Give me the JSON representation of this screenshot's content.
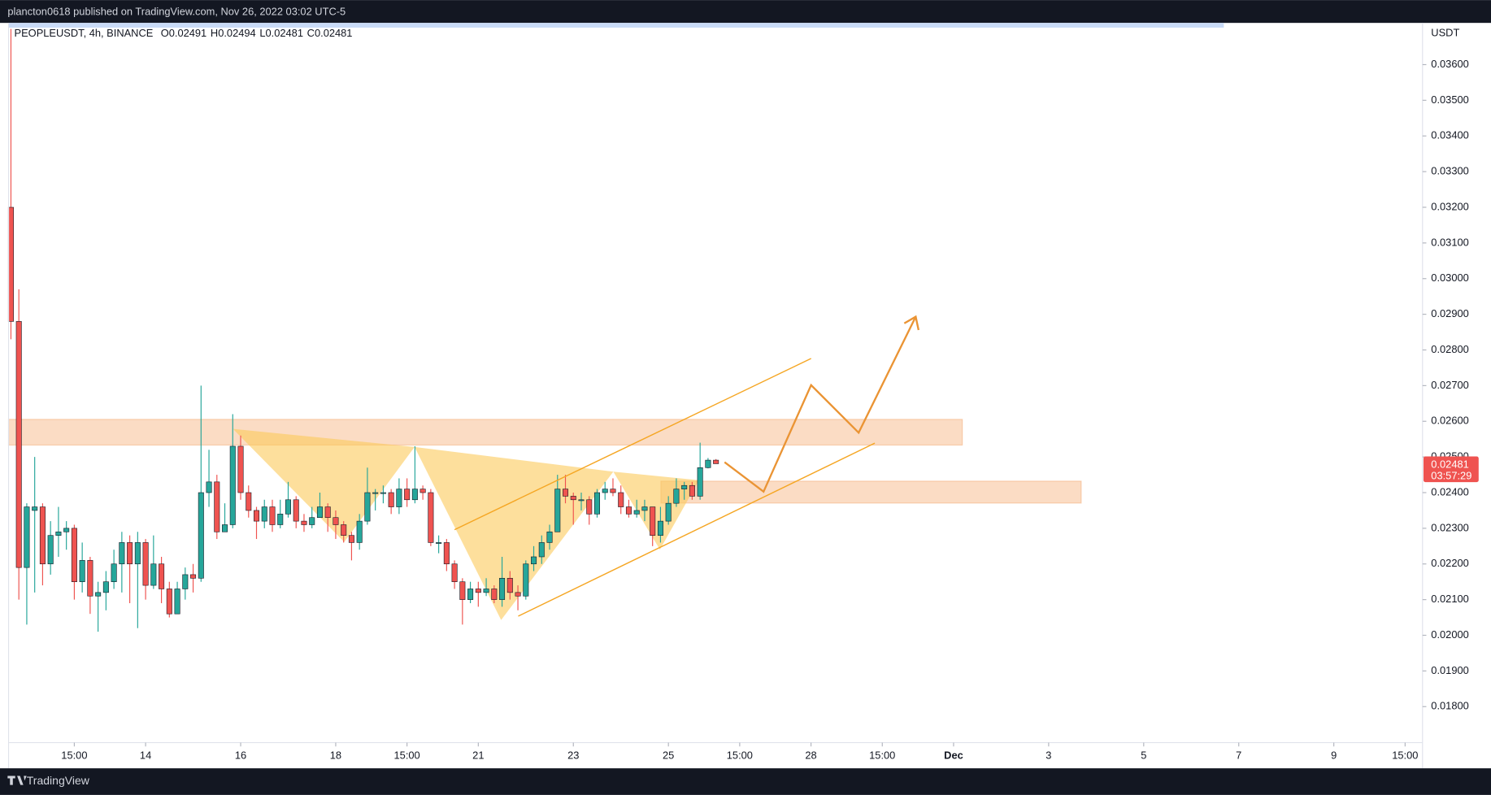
{
  "header": {
    "text": "plancton0618 published on TradingView.com, Nov 26, 2022 03:02 UTC-5"
  },
  "footer": {
    "brand": "TradingView"
  },
  "chart_data": {
    "type": "candlestick",
    "legend": {
      "symbol": "PEOPLEUSDT, 4h, BINANCE",
      "fields": [
        "O",
        "H",
        "L",
        "C"
      ],
      "value_labels": [
        "0.02491",
        "0.02494",
        "0.02481",
        "0.02481"
      ]
    },
    "y_axis_unit": "USDT",
    "last_price_label": "0.02481",
    "countdown": "03:57:29",
    "up_color": "#26a69a",
    "down_color": "#ef5350",
    "grid": false,
    "categories": [
      null,
      null,
      null,
      null,
      null,
      null,
      null,
      null,
      null,
      null,
      null,
      null,
      null,
      null,
      null,
      null,
      null,
      null,
      null,
      null,
      null,
      null,
      null,
      null,
      null,
      null,
      null,
      null,
      null,
      null,
      null,
      null,
      null,
      null,
      null,
      null,
      null,
      null,
      null,
      null,
      null,
      null,
      null,
      null,
      null,
      null,
      null,
      null,
      null,
      null,
      null,
      null,
      null,
      null,
      null,
      null,
      null,
      null,
      null,
      null,
      null,
      null,
      null,
      null,
      null,
      null,
      null,
      null,
      null,
      null,
      null,
      null,
      null,
      null,
      null,
      null,
      null,
      null,
      null,
      null,
      null,
      null,
      null,
      null,
      null,
      null,
      null,
      null,
      null,
      null
    ],
    "open": [
      0.032,
      0.0288,
      0.0219,
      0.0235,
      0.0236,
      0.022,
      0.0228,
      0.0229,
      0.023,
      0.0215,
      0.0221,
      0.0211,
      0.0212,
      0.0215,
      0.022,
      0.0226,
      0.022,
      0.0226,
      0.0214,
      0.022,
      0.0213,
      0.0206,
      0.0213,
      0.0217,
      0.0216,
      0.024,
      0.0243,
      0.0229,
      0.0231,
      0.0253,
      0.024,
      0.0235,
      0.0232,
      0.0236,
      0.0231,
      0.0234,
      0.0238,
      0.0232,
      0.0231,
      0.0233,
      0.0236,
      0.0233,
      0.0231,
      0.0228,
      0.0226,
      0.0232,
      0.024,
      0.024,
      0.024,
      0.0236,
      0.0241,
      0.0238,
      0.0241,
      0.024,
      0.0226,
      0.0226,
      0.022,
      0.0215,
      0.021,
      0.0213,
      0.0212,
      0.0213,
      0.021,
      0.0216,
      0.0212,
      0.0211,
      0.022,
      0.0222,
      0.0226,
      0.0229,
      0.0241,
      0.0239,
      0.0238,
      0.0238,
      0.0234,
      0.024,
      0.0241,
      0.024,
      0.0236,
      0.0234,
      0.0235,
      0.0236,
      0.0228,
      0.0232,
      0.0237,
      0.0241,
      0.0242,
      0.0239,
      0.0247,
      0.02491
    ],
    "high": [
      0.037,
      0.0297,
      0.0237,
      0.025,
      0.0237,
      0.0232,
      0.0236,
      0.0232,
      0.0231,
      0.0226,
      0.0222,
      0.0215,
      0.0218,
      0.0224,
      0.0229,
      0.0228,
      0.0229,
      0.0227,
      0.0228,
      0.0222,
      0.0215,
      0.0215,
      0.0219,
      0.022,
      0.027,
      0.0252,
      0.0245,
      0.0237,
      0.0262,
      0.0256,
      0.0242,
      0.0236,
      0.0238,
      0.0238,
      0.0238,
      0.0243,
      0.0239,
      0.0234,
      0.0236,
      0.024,
      0.0237,
      0.0235,
      0.0232,
      0.0229,
      0.0234,
      0.0247,
      0.0241,
      0.0242,
      0.0241,
      0.0244,
      0.0244,
      0.0253,
      0.0242,
      0.0241,
      0.0228,
      0.0227,
      0.0221,
      0.0216,
      0.0215,
      0.0215,
      0.0216,
      0.0214,
      0.0222,
      0.0218,
      0.0214,
      0.0221,
      0.0225,
      0.0228,
      0.0231,
      0.0245,
      0.0245,
      0.024,
      0.024,
      0.0239,
      0.0241,
      0.0243,
      0.0244,
      0.0242,
      0.0238,
      0.0238,
      0.0238,
      0.0236,
      0.0236,
      0.0239,
      0.0244,
      0.0243,
      0.0243,
      0.0254,
      0.02497,
      0.02494
    ],
    "low": [
      0.0283,
      0.021,
      0.0203,
      0.0212,
      0.0214,
      0.0217,
      0.0222,
      0.0224,
      0.021,
      0.0212,
      0.0206,
      0.0201,
      0.0207,
      0.0213,
      0.0212,
      0.0209,
      0.0202,
      0.021,
      0.0213,
      0.0209,
      0.0205,
      0.0206,
      0.021,
      0.0212,
      0.0215,
      0.0236,
      0.0227,
      0.0229,
      0.023,
      0.0238,
      0.0233,
      0.0227,
      0.023,
      0.0229,
      0.023,
      0.0233,
      0.023,
      0.0229,
      0.023,
      0.0233,
      0.0229,
      0.0227,
      0.0226,
      0.0221,
      0.0224,
      0.0231,
      0.0235,
      0.0237,
      0.0234,
      0.0234,
      0.0236,
      0.0237,
      0.0238,
      0.0225,
      0.0223,
      0.0218,
      0.0213,
      0.0203,
      0.0209,
      0.0208,
      0.0211,
      0.0209,
      0.0208,
      0.021,
      0.0207,
      0.021,
      0.0218,
      0.022,
      0.0224,
      0.0229,
      0.0237,
      0.0231,
      0.0235,
      0.0231,
      0.0233,
      0.0238,
      0.0239,
      0.0234,
      0.0233,
      0.0233,
      0.0232,
      0.0225,
      0.0226,
      0.0231,
      0.0236,
      0.0238,
      0.0238,
      0.0238,
      0.02468,
      0.02481
    ],
    "close": [
      0.0288,
      0.0219,
      0.0236,
      0.0236,
      0.022,
      0.0228,
      0.0229,
      0.023,
      0.0215,
      0.0221,
      0.0211,
      0.0212,
      0.0215,
      0.022,
      0.0226,
      0.022,
      0.0226,
      0.0214,
      0.022,
      0.0213,
      0.0206,
      0.0213,
      0.0217,
      0.0216,
      0.024,
      0.0243,
      0.0229,
      0.0231,
      0.0253,
      0.024,
      0.0235,
      0.0232,
      0.0236,
      0.0231,
      0.0234,
      0.0238,
      0.0232,
      0.0231,
      0.0233,
      0.0236,
      0.0233,
      0.0231,
      0.0228,
      0.0226,
      0.0232,
      0.024,
      0.024,
      0.024,
      0.0236,
      0.0241,
      0.0238,
      0.0241,
      0.024,
      0.0226,
      0.0226,
      0.022,
      0.0215,
      0.021,
      0.0213,
      0.0212,
      0.0213,
      0.021,
      0.0216,
      0.0212,
      0.0211,
      0.022,
      0.0222,
      0.0226,
      0.0229,
      0.0241,
      0.0239,
      0.0238,
      0.0238,
      0.0234,
      0.024,
      0.0241,
      0.024,
      0.0236,
      0.0234,
      0.0235,
      0.0236,
      0.0228,
      0.0232,
      0.0237,
      0.0241,
      0.0242,
      0.0239,
      0.0247,
      0.02491,
      0.02481
    ],
    "xlim": [
      -0.3,
      178.2
    ],
    "xticks": [
      {
        "value": 8,
        "label": "15:00"
      },
      {
        "value": 17,
        "label": "14"
      },
      {
        "value": 29,
        "label": "16"
      },
      {
        "value": 41,
        "label": "18"
      },
      {
        "value": 50,
        "label": "15:00"
      },
      {
        "value": 59,
        "label": "21"
      },
      {
        "value": 71,
        "label": "23"
      },
      {
        "value": 83,
        "label": "25"
      },
      {
        "value": 92,
        "label": "15:00"
      },
      {
        "value": 101,
        "label": "28"
      },
      {
        "value": 110,
        "label": "15:00"
      },
      {
        "value": 119,
        "label": "Dec"
      },
      {
        "value": 131,
        "label": "3"
      },
      {
        "value": 143,
        "label": "5"
      },
      {
        "value": 155,
        "label": "7"
      },
      {
        "value": 167,
        "label": "9"
      },
      {
        "value": 176,
        "label": "15:00"
      }
    ],
    "ylim": [
      0.01699,
      0.03717
    ],
    "yticks": [
      {
        "value": 0.018,
        "label": "0.01800"
      },
      {
        "value": 0.019,
        "label": "0.01900"
      },
      {
        "value": 0.02,
        "label": "0.02000"
      },
      {
        "value": 0.021,
        "label": "0.02100"
      },
      {
        "value": 0.022,
        "label": "0.02200"
      },
      {
        "value": 0.023,
        "label": "0.02300"
      },
      {
        "value": 0.024,
        "label": "0.02400"
      },
      {
        "value": 0.025,
        "label": "0.02500"
      },
      {
        "value": 0.026,
        "label": "0.02600"
      },
      {
        "value": 0.027,
        "label": "0.02700"
      },
      {
        "value": 0.028,
        "label": "0.02800"
      },
      {
        "value": 0.029,
        "label": "0.02900"
      },
      {
        "value": 0.03,
        "label": "0.03000"
      },
      {
        "value": 0.031,
        "label": "0.03100"
      },
      {
        "value": 0.032,
        "label": "0.03200"
      },
      {
        "value": 0.033,
        "label": "0.03300"
      },
      {
        "value": 0.034,
        "label": "0.03400"
      },
      {
        "value": 0.035,
        "label": "0.03500"
      },
      {
        "value": 0.036,
        "label": "0.03600"
      }
    ]
  }
}
